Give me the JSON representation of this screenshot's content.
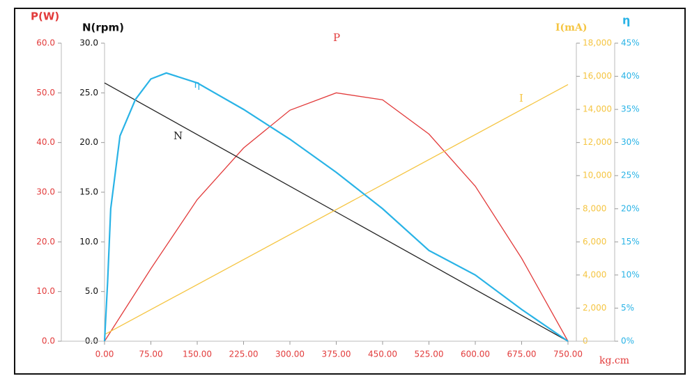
{
  "chart_data": {
    "type": "line",
    "x_label": "kg.cm",
    "xlim": [
      0,
      750
    ],
    "xticks": [
      {
        "value": 0,
        "label": "0.00"
      },
      {
        "value": 75,
        "label": "75.00"
      },
      {
        "value": 150,
        "label": "150.00"
      },
      {
        "value": 225,
        "label": "225.00"
      },
      {
        "value": 300,
        "label": "300.00"
      },
      {
        "value": 375,
        "label": "375.00"
      },
      {
        "value": 450,
        "label": "450.00"
      },
      {
        "value": 525,
        "label": "525.00"
      },
      {
        "value": 600,
        "label": "600.00"
      },
      {
        "value": 675,
        "label": "675.00"
      },
      {
        "value": 750,
        "label": "750.00"
      }
    ],
    "y_label": "P(W)",
    "ylim": [
      0,
      60
    ],
    "yticks": [
      {
        "value": 0,
        "label": "0.0"
      },
      {
        "value": 10,
        "label": "10.0"
      },
      {
        "value": 20,
        "label": "20.0"
      },
      {
        "value": 30,
        "label": "30.0"
      },
      {
        "value": 40,
        "label": "40.0"
      },
      {
        "value": 50,
        "label": "50.0"
      },
      {
        "value": 60,
        "label": "60.0"
      }
    ],
    "y2_label": "N(rpm)",
    "y2lim": [
      0,
      30
    ],
    "y2ticks": [
      {
        "value": 0,
        "label": "0.0"
      },
      {
        "value": 5,
        "label": "5.0"
      },
      {
        "value": 10,
        "label": "10.0"
      },
      {
        "value": 15,
        "label": "15.0"
      },
      {
        "value": 20,
        "label": "20.0"
      },
      {
        "value": 25,
        "label": "25.0"
      },
      {
        "value": 30,
        "label": "30.0"
      }
    ],
    "y3_label": "I(mA)",
    "y3lim": [
      0,
      18000
    ],
    "y3ticks": [
      0,
      {
        "value": 2000,
        "label": "2,000"
      },
      {
        "value": 4000,
        "label": "4,000"
      },
      {
        "value": 6000,
        "label": "6,000"
      },
      {
        "value": 8000,
        "label": "8,000"
      },
      {
        "value": 10000,
        "label": "10,000"
      },
      {
        "value": 12000,
        "label": "12,000"
      },
      {
        "value": 14000,
        "label": "14,000"
      },
      {
        "value": 16000,
        "label": "16,000"
      },
      {
        "value": 18000,
        "label": "18,000"
      }
    ],
    "y4_label": "η",
    "y4lim": [
      0,
      45
    ],
    "y4ticks": [
      {
        "value": 0,
        "label": "0%"
      },
      {
        "value": 5,
        "label": "5%"
      },
      {
        "value": 10,
        "label": "10%"
      },
      {
        "value": 15,
        "label": "15%"
      },
      {
        "value": 20,
        "label": "20%"
      },
      {
        "value": 25,
        "label": "25%"
      },
      {
        "value": 30,
        "label": "30%"
      },
      {
        "value": 35,
        "label": "35%"
      },
      {
        "value": 40,
        "label": "40%"
      },
      {
        "value": 45,
        "label": "45%"
      }
    ],
    "series": [
      {
        "name": "P",
        "color": "#e23b3b",
        "axis": "y",
        "x": [
          0,
          75,
          150,
          225,
          300,
          375,
          450,
          525,
          600,
          675,
          750
        ],
        "values": [
          0,
          14.6,
          28.5,
          38.9,
          46.5,
          50,
          48.6,
          41.7,
          31.2,
          16.7,
          0
        ]
      },
      {
        "name": "N",
        "color": "#222222",
        "axis": "y2",
        "x": [
          0,
          750
        ],
        "values": [
          26,
          0
        ]
      },
      {
        "name": "I",
        "color": "#f5c542",
        "axis": "y3",
        "x": [
          0,
          750
        ],
        "values": [
          400,
          15500
        ]
      },
      {
        "name": "η",
        "color": "#29b3e6",
        "axis": "y4",
        "x": [
          0,
          5,
          10,
          25,
          50,
          75,
          100,
          150,
          225,
          300,
          375,
          450,
          525,
          600,
          675,
          750
        ],
        "values": [
          0,
          9,
          20,
          31,
          36.5,
          39.6,
          40.5,
          39,
          35,
          30.5,
          25.5,
          20,
          13.7,
          10,
          4.8,
          0
        ]
      }
    ]
  }
}
